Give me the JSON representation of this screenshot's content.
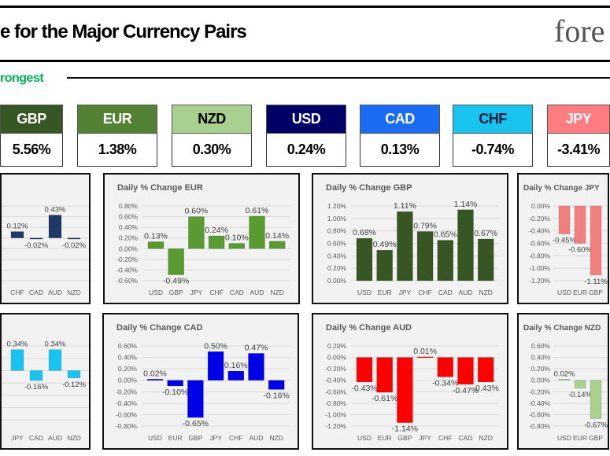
{
  "header": {
    "title": "e for the Major Currency Pairs",
    "logo_text": "fore",
    "strength_label": "rongest",
    "strength_label_color": "#00b050"
  },
  "tiles": [
    {
      "currency": "GBP",
      "value": "5.56%",
      "bg": "#375623",
      "fg": "#ffffff"
    },
    {
      "currency": "EUR",
      "value": "1.38%",
      "bg": "#548235",
      "fg": "#ffffff"
    },
    {
      "currency": "NZD",
      "value": "0.30%",
      "bg": "#a9d08e",
      "fg": "#000000"
    },
    {
      "currency": "USD",
      "value": "0.24%",
      "bg": "#000066",
      "fg": "#ffffff"
    },
    {
      "currency": "CAD",
      "value": "0.13%",
      "bg": "#1a6cf2",
      "fg": "#ffffff"
    },
    {
      "currency": "CHF",
      "value": "-0.74%",
      "bg": "#19c3ef",
      "fg": "#0a1a3a"
    },
    {
      "currency": "JPY",
      "value": "-3.41%",
      "bg": "#ff7c80",
      "fg": "#ffffff"
    }
  ],
  "chart_data": [
    {
      "type": "bar",
      "title": "",
      "color": "#1f3864",
      "ylim": [
        -0.8,
        0.6
      ],
      "show_ticks": false,
      "categories": [
        "CHF",
        "CAD",
        "AUD",
        "NZD"
      ],
      "values": [
        0.12,
        -0.02,
        0.43,
        -0.02
      ],
      "labels": [
        "0.12%",
        "-0.02%",
        "0.43%",
        "-0.02%"
      ]
    },
    {
      "type": "bar",
      "title": "Daily % Change EUR",
      "color": "#5a9a32",
      "ylim": [
        -0.6,
        0.8
      ],
      "show_ticks": true,
      "ticks": [
        "0.80%",
        "0.60%",
        "0.40%",
        "0.20%",
        "0.00%",
        "-0.20%",
        "-0.40%",
        "-0.60%"
      ],
      "categories": [
        "USD",
        "GBP",
        "JPY",
        "CHF",
        "CAD",
        "AUD",
        "NZD"
      ],
      "values": [
        0.13,
        -0.49,
        0.6,
        0.24,
        0.1,
        0.61,
        0.14
      ],
      "labels": [
        "0.13%",
        "-0.49%",
        "0.60%",
        "0.24%",
        "0.10%",
        "0.61%",
        "0.14%"
      ]
    },
    {
      "type": "bar",
      "title": "Daily % Change GBP",
      "color": "#375623",
      "ylim": [
        0,
        1.2
      ],
      "show_ticks": true,
      "ticks": [
        "1.20%",
        "1.00%",
        "0.80%",
        "0.60%",
        "0.40%",
        "0.20%",
        "0.00%"
      ],
      "categories": [
        "USD",
        "EUR",
        "JPY",
        "CHF",
        "CAD",
        "AUD",
        "NZD"
      ],
      "values": [
        0.68,
        0.49,
        1.11,
        0.79,
        0.65,
        1.14,
        0.67
      ],
      "labels": [
        "0.68%",
        "0.49%",
        "1.11%",
        "0.79%",
        "0.65%",
        "1.14%",
        "0.67%"
      ]
    },
    {
      "type": "bar",
      "title": "Daily % Change JPY",
      "color": "#f08080",
      "ylim": [
        -1.2,
        0
      ],
      "show_ticks": true,
      "ticks": [
        "0.00%",
        "-0.20%",
        "-0.40%",
        "-0.60%",
        "-0.80%",
        "-1.00%",
        "-1.20%"
      ],
      "categories": [
        "USD",
        "EUR",
        "GBP"
      ],
      "values": [
        -0.45,
        -0.6,
        -1.11
      ],
      "labels": [
        "-0.45%",
        "-0.60%",
        "-1.11%"
      ]
    },
    {
      "type": "bar",
      "title": "",
      "color": "#19c3ef",
      "ylim": [
        -0.9,
        0.4
      ],
      "show_ticks": false,
      "categories": [
        "JPY",
        "CAD",
        "AUD",
        "NZD"
      ],
      "values": [
        0.34,
        -0.16,
        0.34,
        -0.12
      ],
      "labels": [
        "0.34%",
        "-0.16%",
        "0.34%",
        "-0.12%"
      ]
    },
    {
      "type": "bar",
      "title": "Daily % Change CAD",
      "color": "#0000e6",
      "ylim": [
        -0.8,
        0.6
      ],
      "show_ticks": true,
      "ticks": [
        "0.60%",
        "0.40%",
        "0.20%",
        "0.00%",
        "-0.20%",
        "-0.40%",
        "-0.60%",
        "-0.80%"
      ],
      "categories": [
        "USD",
        "EUR",
        "GBP",
        "JPY",
        "CHF",
        "AUD",
        "NZD"
      ],
      "values": [
        0.02,
        -0.1,
        -0.65,
        0.5,
        0.16,
        0.47,
        -0.16
      ],
      "labels": [
        "0.02%",
        "-0.10%",
        "-0.65%",
        "0.50%",
        "0.16%",
        "0.47%",
        "-0.16%"
      ]
    },
    {
      "type": "bar",
      "title": "Daily % Change AUD",
      "color": "#ff0000",
      "ylim": [
        -1.2,
        0.2
      ],
      "show_ticks": true,
      "ticks": [
        "0.20%",
        "0.00%",
        "-0.20%",
        "-0.40%",
        "-0.60%",
        "-0.80%",
        "-1.00%",
        "-1.20%"
      ],
      "categories": [
        "USD",
        "EUR",
        "GBP",
        "JPY",
        "CHF",
        "CAD",
        "NZD"
      ],
      "values": [
        -0.43,
        -0.61,
        -1.14,
        0.01,
        -0.34,
        -0.47,
        -0.43
      ],
      "labels": [
        "-0.43%",
        "-0.61%",
        "-1.14%",
        "0.01%",
        "-0.34%",
        "-0.47%",
        "-0.43%"
      ]
    },
    {
      "type": "bar",
      "title": "Daily % Change NZD",
      "color": "#a9d08e",
      "ylim": [
        -0.8,
        0.6
      ],
      "show_ticks": true,
      "ticks": [
        "0.60%",
        "0.40%",
        "0.20%",
        "0.00%",
        "-0.20%",
        "-0.40%",
        "-0.60%",
        "-0.80%"
      ],
      "categories": [
        "USD",
        "EUR",
        "GBP"
      ],
      "values": [
        0.02,
        -0.14,
        -0.67
      ],
      "labels": [
        "0.02%",
        "-0.14%",
        "-0.67%"
      ]
    }
  ]
}
